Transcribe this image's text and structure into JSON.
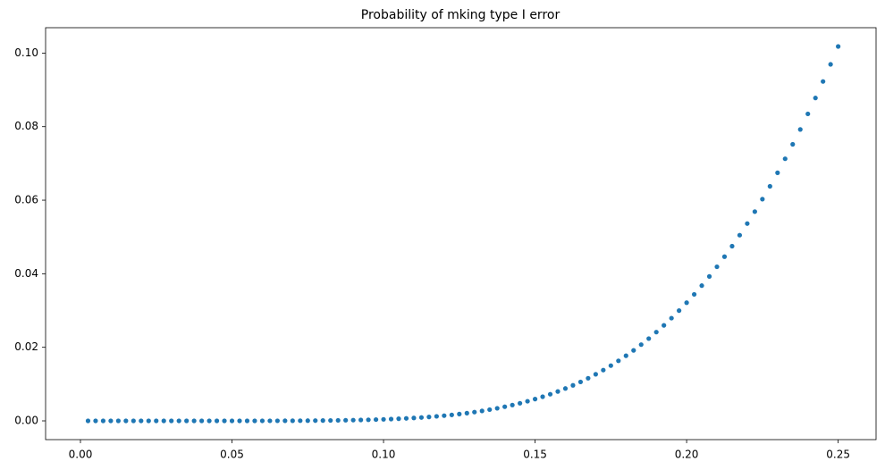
{
  "chart_data": {
    "type": "scatter",
    "title": "Probability of mking type I error",
    "x": [
      0.0025,
      0.005,
      0.0075,
      0.01,
      0.0125,
      0.015,
      0.0175,
      0.02,
      0.0225,
      0.025,
      0.0275,
      0.03,
      0.0325,
      0.035,
      0.0375,
      0.04,
      0.0425,
      0.045,
      0.0475,
      0.05,
      0.0525,
      0.055,
      0.0575,
      0.06,
      0.0625,
      0.065,
      0.0675,
      0.07,
      0.0725,
      0.075,
      0.0775,
      0.08,
      0.0825,
      0.085,
      0.0875,
      0.09,
      0.0925,
      0.095,
      0.0975,
      0.1,
      0.1025,
      0.105,
      0.1075,
      0.11,
      0.1125,
      0.115,
      0.1175,
      0.12,
      0.1225,
      0.125,
      0.1275,
      0.13,
      0.1325,
      0.135,
      0.1375,
      0.14,
      0.1425,
      0.145,
      0.1475,
      0.15,
      0.1525,
      0.155,
      0.1575,
      0.16,
      0.1625,
      0.165,
      0.1675,
      0.17,
      0.1725,
      0.175,
      0.1775,
      0.18,
      0.1825,
      0.185,
      0.1875,
      0.19,
      0.1925,
      0.195,
      0.1975,
      0.2,
      0.2025,
      0.205,
      0.2075,
      0.21,
      0.2125,
      0.215,
      0.2175,
      0.22,
      0.2225,
      0.225,
      0.2275,
      0.23,
      0.2325,
      0.235,
      0.2375,
      0.24,
      0.2425,
      0.245,
      0.2475,
      0.25
    ],
    "values": [
      0,
      0,
      0,
      0,
      0,
      0,
      0,
      0,
      0,
      0,
      0,
      0,
      0,
      0,
      0,
      0,
      0,
      0,
      0,
      2.9e-06,
      4.1e-06,
      5.8e-06,
      8e-06,
      1.1e-05,
      1.48e-05,
      1.97e-05,
      2.59e-05,
      3.37e-05,
      4.33e-05,
      5.52e-05,
      6.98e-05,
      8.74e-05,
      0.0001086,
      0.000134,
      0.000164,
      0.0002,
      0.000242,
      0.000291,
      0.000348,
      0.000415,
      0.000492,
      0.000579,
      0.000679,
      0.000794,
      0.000922,
      0.001067,
      0.00123,
      0.001417,
      0.00162,
      0.001852,
      0.0021,
      0.00239,
      0.0027,
      0.00305,
      0.00342,
      0.00384,
      0.0043,
      0.00479,
      0.00533,
      0.00592,
      0.00656,
      0.00725,
      0.00799,
      0.0088,
      0.00966,
      0.01059,
      0.01159,
      0.01266,
      0.0138,
      0.01502,
      0.01633,
      0.01771,
      0.01917,
      0.02073,
      0.02237,
      0.02413,
      0.02597,
      0.02792,
      0.02997,
      0.03213,
      0.0344,
      0.03677,
      0.03927,
      0.0419,
      0.04464,
      0.0475,
      0.05049,
      0.05364,
      0.05689,
      0.06028,
      0.06378,
      0.06745,
      0.07126,
      0.0752,
      0.07924,
      0.08347,
      0.08779,
      0.09228,
      0.09693,
      0.1018
    ],
    "color": "#1f77b4",
    "xlim": [
      -0.0115,
      0.2625
    ],
    "ylim": [
      -0.0051,
      0.1069
    ],
    "xticks": [
      {
        "value": 0,
        "label": "0.00"
      },
      {
        "value": 0.05,
        "label": "0.05"
      },
      {
        "value": 0.1,
        "label": "0.10"
      },
      {
        "value": 0.15,
        "label": "0.15"
      },
      {
        "value": 0.2,
        "label": "0.20"
      },
      {
        "value": 0.25,
        "label": "0.25"
      }
    ],
    "yticks": [
      {
        "value": 0,
        "label": "0.00"
      },
      {
        "value": 0.02,
        "label": "0.02"
      },
      {
        "value": 0.04,
        "label": "0.04"
      },
      {
        "value": 0.06,
        "label": "0.06"
      },
      {
        "value": 0.08,
        "label": "0.08"
      },
      {
        "value": 0.1,
        "label": "0.10"
      }
    ]
  }
}
